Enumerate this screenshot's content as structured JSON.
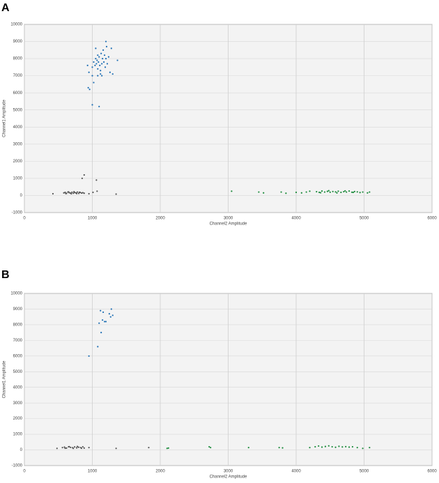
{
  "chart_data": [
    {
      "type": "scatter",
      "label": "A",
      "xlabel": "Channel2 Amplitude",
      "ylabel": "Channel1 Amplitude",
      "xlim": [
        0,
        6000
      ],
      "xticks": [
        0,
        1000,
        2000,
        3000,
        4000,
        5000,
        6000
      ],
      "ylim": [
        -1000,
        10000
      ],
      "yticks": [
        -1000,
        0,
        1000,
        2000,
        3000,
        4000,
        5000,
        6000,
        7000,
        8000,
        9000,
        10000
      ],
      "grid": true,
      "background": "#f3f3f3",
      "series": [
        {
          "color": "#1f6fb4",
          "x": [
            1000,
            1020,
            1040,
            1050,
            1060,
            1070,
            1080,
            1090,
            1100,
            1110,
            1120,
            1130,
            1140,
            1150,
            1160,
            1170,
            1180,
            1190,
            1200,
            1210,
            1220,
            1240,
            1260,
            1280,
            1300,
            1050,
            1080,
            1000,
            950,
            940,
            960,
            1020,
            1080,
            1120,
            1200,
            1370,
            1000,
            1100,
            930,
            1140
          ],
          "values": [
            7500,
            7800,
            7600,
            8000,
            7700,
            7900,
            7400,
            7800,
            8100,
            7600,
            7300,
            8300,
            7700,
            8000,
            8500,
            7800,
            8200,
            7500,
            8000,
            8700,
            7700,
            8100,
            7200,
            8600,
            7100,
            8600,
            8200,
            7000,
            7200,
            6300,
            6200,
            6600,
            7000,
            7100,
            9000,
            7900,
            5300,
            5200,
            7600,
            7000
          ]
        },
        {
          "color": "#555555",
          "x": [
            580,
            600,
            620,
            640,
            660,
            680,
            700,
            720,
            740,
            760,
            780,
            800,
            820,
            840,
            860,
            880,
            610,
            650,
            690,
            730,
            770,
            810,
            420,
            850,
            880,
            1060,
            1010,
            1070,
            1350,
            950
          ],
          "values": [
            150,
            180,
            120,
            200,
            160,
            140,
            190,
            130,
            170,
            150,
            200,
            120,
            180,
            140,
            160,
            130,
            110,
            210,
            100,
            220,
            110,
            190,
            100,
            1000,
            1200,
            900,
            180,
            250,
            80,
            100
          ]
        },
        {
          "color": "#1a8a3a",
          "x": [
            3050,
            3450,
            3520,
            3780,
            3850,
            4000,
            4080,
            4150,
            4200,
            4300,
            4340,
            4380,
            4420,
            4460,
            4500,
            4540,
            4580,
            4620,
            4660,
            4700,
            4740,
            4780,
            4820,
            4860,
            4900,
            4940,
            4980,
            4360,
            4480,
            4600,
            4720,
            4840,
            5050,
            5080
          ],
          "values": [
            250,
            200,
            150,
            200,
            130,
            180,
            150,
            200,
            250,
            220,
            180,
            260,
            200,
            240,
            190,
            230,
            210,
            250,
            180,
            220,
            200,
            260,
            190,
            230,
            210,
            170,
            200,
            160,
            280,
            150,
            270,
            180,
            150,
            200
          ]
        }
      ]
    },
    {
      "type": "scatter",
      "label": "B",
      "xlabel": "Channel2 Amplitude",
      "ylabel": "Channel1 Amplitude",
      "xlim": [
        0,
        6000
      ],
      "xticks": [
        0,
        1000,
        2000,
        3000,
        4000,
        5000,
        6000
      ],
      "ylim": [
        -1000,
        10000
      ],
      "yticks": [
        -1000,
        0,
        1000,
        2000,
        3000,
        4000,
        5000,
        6000,
        7000,
        8000,
        9000,
        10000
      ],
      "grid": true,
      "background": "#f3f3f3",
      "series": [
        {
          "color": "#1f6fb4",
          "x": [
            950,
            1080,
            1100,
            1130,
            1120,
            1160,
            1150,
            1180,
            1200,
            1250,
            1270,
            1280,
            1300
          ],
          "values": [
            6000,
            6600,
            8100,
            7500,
            8900,
            8800,
            8300,
            8200,
            8200,
            8700,
            8500,
            9000,
            8600
          ]
        },
        {
          "color": "#555555",
          "x": [
            560,
            590,
            620,
            650,
            680,
            710,
            740,
            770,
            800,
            830,
            860,
            880,
            600,
            660,
            720,
            780,
            840,
            480,
            950,
            1350,
            1830
          ],
          "values": [
            150,
            180,
            120,
            200,
            160,
            140,
            190,
            130,
            170,
            150,
            200,
            120,
            110,
            210,
            100,
            220,
            110,
            100,
            150,
            100,
            150
          ]
        },
        {
          "color": "#1a8a3a",
          "x": [
            2100,
            2120,
            2720,
            2740,
            3300,
            3750,
            3800,
            4200,
            4280,
            4330,
            4380,
            4430,
            4480,
            4530,
            4580,
            4630,
            4680,
            4730,
            4780,
            4830,
            4900,
            4980,
            5080
          ],
          "values": [
            100,
            120,
            200,
            150,
            150,
            150,
            130,
            150,
            200,
            250,
            180,
            220,
            260,
            200,
            170,
            230,
            190,
            210,
            180,
            200,
            150,
            100,
            150
          ]
        }
      ]
    }
  ]
}
